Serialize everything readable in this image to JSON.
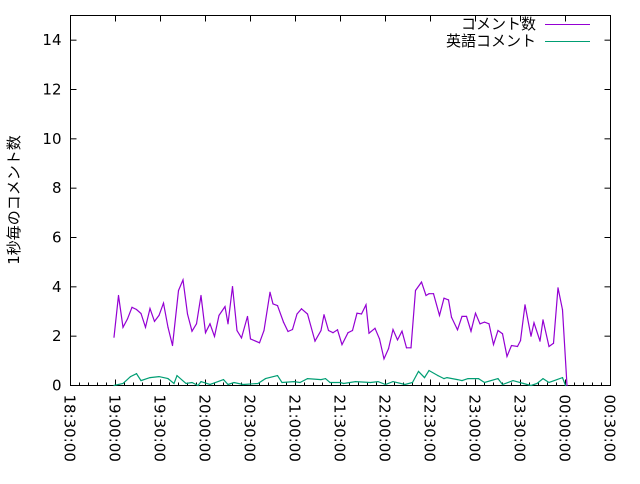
{
  "chart_data": {
    "type": "line",
    "title": "",
    "xlabel": "",
    "ylabel": "1秒毎のコメント数",
    "ylim": [
      0,
      15
    ],
    "xlim": [
      "18:30:00",
      "00:30:00"
    ],
    "grid": false,
    "legend_position": "top-right",
    "x_ticks": [
      "18:30:00",
      "19:00:00",
      "19:30:00",
      "20:00:00",
      "20:30:00",
      "21:00:00",
      "21:30:00",
      "22:00:00",
      "22:30:00",
      "23:00:00",
      "23:30:00",
      "00:00:00",
      "00:30:00"
    ],
    "y_ticks": [
      "0",
      "2",
      "4",
      "6",
      "8",
      "10",
      "12",
      "14"
    ],
    "series": [
      {
        "name": "コメント数",
        "color": "#9400D3",
        "x": [
          "18:59",
          "19:02",
          "19:05",
          "19:08",
          "19:11",
          "19:14",
          "19:17",
          "19:20",
          "19:23",
          "19:26",
          "19:29",
          "19:32",
          "19:35",
          "19:38",
          "19:42",
          "19:45",
          "19:48",
          "19:51",
          "19:54",
          "19:57",
          "20:00",
          "20:03",
          "20:06",
          "20:09",
          "20:13",
          "20:15",
          "20:18",
          "20:21",
          "20:24",
          "20:28",
          "20:30",
          "20:36",
          "20:39",
          "20:43",
          "20:45",
          "20:48",
          "20:52",
          "20:55",
          "20:58",
          "21:01",
          "21:04",
          "21:08",
          "21:13",
          "21:17",
          "21:19",
          "21:22",
          "21:25",
          "21:28",
          "21:31",
          "21:35",
          "21:38",
          "21:41",
          "21:44",
          "21:47",
          "21:49",
          "21:53",
          "21:56",
          "21:59",
          "22:02",
          "22:05",
          "22:08",
          "22:11",
          "22:14",
          "22:17",
          "22:20",
          "22:24",
          "22:27",
          "22:29",
          "22:32",
          "22:36",
          "22:39",
          "22:42",
          "22:44",
          "22:48",
          "22:51",
          "22:54",
          "22:57",
          "23:00",
          "23:03",
          "23:06",
          "23:09",
          "23:12",
          "23:15",
          "23:18",
          "23:21",
          "23:24",
          "23:28",
          "23:30",
          "23:33",
          "23:37",
          "23:39",
          "23:43",
          "23:45",
          "23:49",
          "23:52",
          "23:55",
          "23:58",
          "00:01"
        ],
        "values": [
          1.96,
          3.65,
          2.36,
          2.7,
          3.17,
          3.08,
          2.92,
          2.36,
          3.12,
          2.6,
          2.84,
          3.34,
          2.36,
          1.62,
          3.85,
          4.28,
          2.9,
          2.2,
          2.5,
          3.65,
          2.14,
          2.5,
          1.99,
          2.84,
          3.2,
          2.5,
          4.01,
          2.23,
          1.93,
          2.8,
          1.89,
          1.73,
          2.23,
          3.78,
          3.31,
          3.24,
          2.57,
          2.19,
          2.27,
          2.9,
          3.11,
          2.9,
          1.8,
          2.23,
          2.87,
          2.23,
          2.14,
          2.26,
          1.66,
          2.14,
          2.23,
          2.93,
          2.9,
          3.27,
          2.12,
          2.32,
          1.89,
          1.08,
          1.49,
          2.27,
          1.85,
          2.2,
          1.53,
          1.53,
          3.85,
          4.19,
          3.65,
          3.72,
          3.72,
          2.84,
          3.54,
          3.47,
          2.77,
          2.26,
          2.8,
          2.8,
          2.2,
          2.93,
          2.5,
          2.57,
          2.5,
          1.66,
          2.23,
          2.1,
          1.18,
          1.62,
          1.58,
          1.82,
          3.27,
          2.0,
          2.54,
          1.8,
          2.66,
          1.58,
          1.71,
          3.96,
          3.07,
          0
        ]
      },
      {
        "name": "英語コメント",
        "color": "#009E73",
        "x": [
          "18:59",
          "19:05",
          "19:10",
          "19:14",
          "19:17",
          "19:23",
          "19:29",
          "19:35",
          "19:39",
          "19:41",
          "19:47",
          "19:51",
          "19:55",
          "19:57",
          "20:03",
          "20:12",
          "20:15",
          "20:19",
          "20:25",
          "20:35",
          "20:40",
          "20:48",
          "20:51",
          "20:59",
          "21:03",
          "21:08",
          "21:17",
          "21:20",
          "21:23",
          "21:30",
          "21:32",
          "21:40",
          "21:50",
          "21:55",
          "22:00",
          "22:05",
          "22:13",
          "22:18",
          "22:22",
          "22:26",
          "22:29",
          "22:35",
          "22:39",
          "22:41",
          "22:48",
          "22:51",
          "22:55",
          "23:02",
          "23:06",
          "23:15",
          "23:18",
          "23:25",
          "23:32",
          "23:37",
          "23:41",
          "23:45",
          "23:49",
          "23:58",
          "00:00"
        ],
        "values": [
          0,
          0.08,
          0.36,
          0.48,
          0.2,
          0.32,
          0.36,
          0.28,
          0.08,
          0.4,
          0.08,
          0.12,
          0,
          0.16,
          0.04,
          0.24,
          0.04,
          0.12,
          0.04,
          0.08,
          0.28,
          0.4,
          0.12,
          0.16,
          0.12,
          0.28,
          0.24,
          0.28,
          0.12,
          0.12,
          0.08,
          0.16,
          0.12,
          0.16,
          0.04,
          0.16,
          0.04,
          0.12,
          0.57,
          0.32,
          0.61,
          0.4,
          0.28,
          0.32,
          0.24,
          0.2,
          0.28,
          0.28,
          0.12,
          0.28,
          0.04,
          0.2,
          0.08,
          0,
          0.08,
          0.28,
          0.12,
          0.32,
          0
        ]
      }
    ]
  }
}
